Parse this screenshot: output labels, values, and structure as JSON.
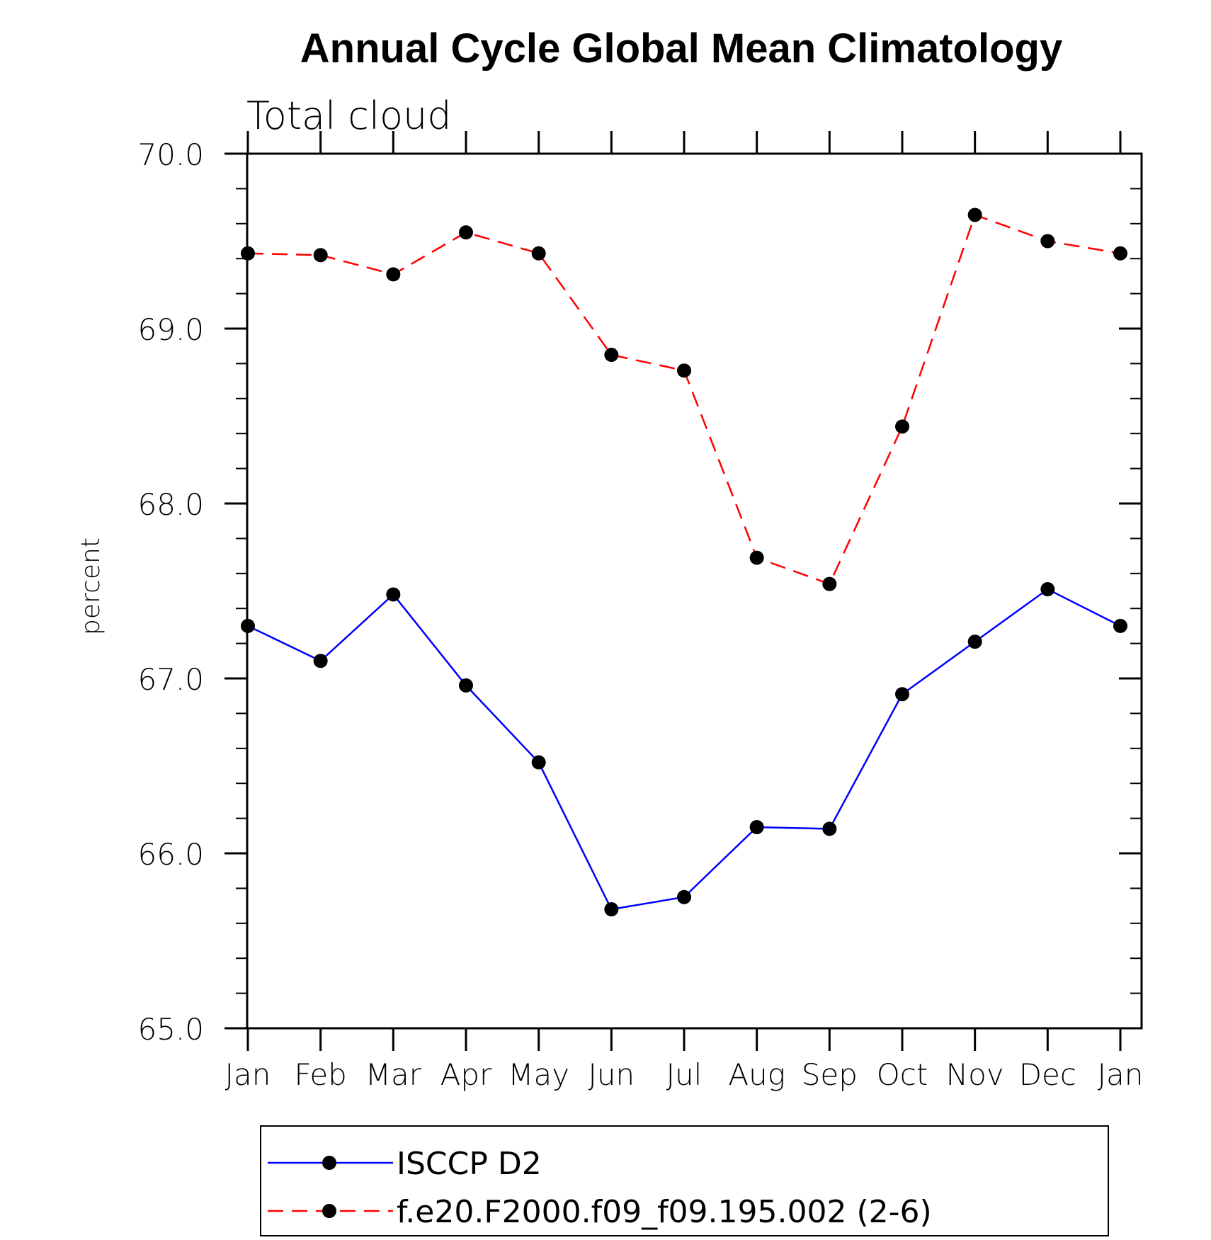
{
  "chart_data": {
    "type": "line",
    "title": "Annual Cycle Global Mean Climatology",
    "subtitle": "Total cloud",
    "xlabel": "",
    "ylabel": "percent",
    "categories": [
      "Jan",
      "Feb",
      "Mar",
      "Apr",
      "May",
      "Jun",
      "Jul",
      "Aug",
      "Sep",
      "Oct",
      "Nov",
      "Dec",
      "Jan"
    ],
    "ylim": [
      65.0,
      70.0
    ],
    "yticks": [
      "65.0",
      "66.0",
      "67.0",
      "68.0",
      "69.0",
      "70.0"
    ],
    "series": [
      {
        "name": "ISCCP D2",
        "color": "#0000ff",
        "dash": "solid",
        "marker": "filled-circle",
        "values": [
          67.3,
          67.1,
          67.48,
          66.96,
          66.52,
          65.68,
          65.75,
          66.15,
          66.14,
          66.91,
          67.21,
          67.51,
          67.3
        ]
      },
      {
        "name": "f.e20.F2000.f09_f09.195.002 (2-6)",
        "color": "#ff0000",
        "dash": "dashed",
        "marker": "filled-circle",
        "values": [
          69.43,
          69.42,
          69.31,
          69.55,
          69.43,
          68.85,
          68.76,
          67.69,
          67.54,
          68.44,
          69.65,
          69.5,
          69.43
        ]
      }
    ],
    "legend_position": "bottom-center",
    "grid": false
  }
}
